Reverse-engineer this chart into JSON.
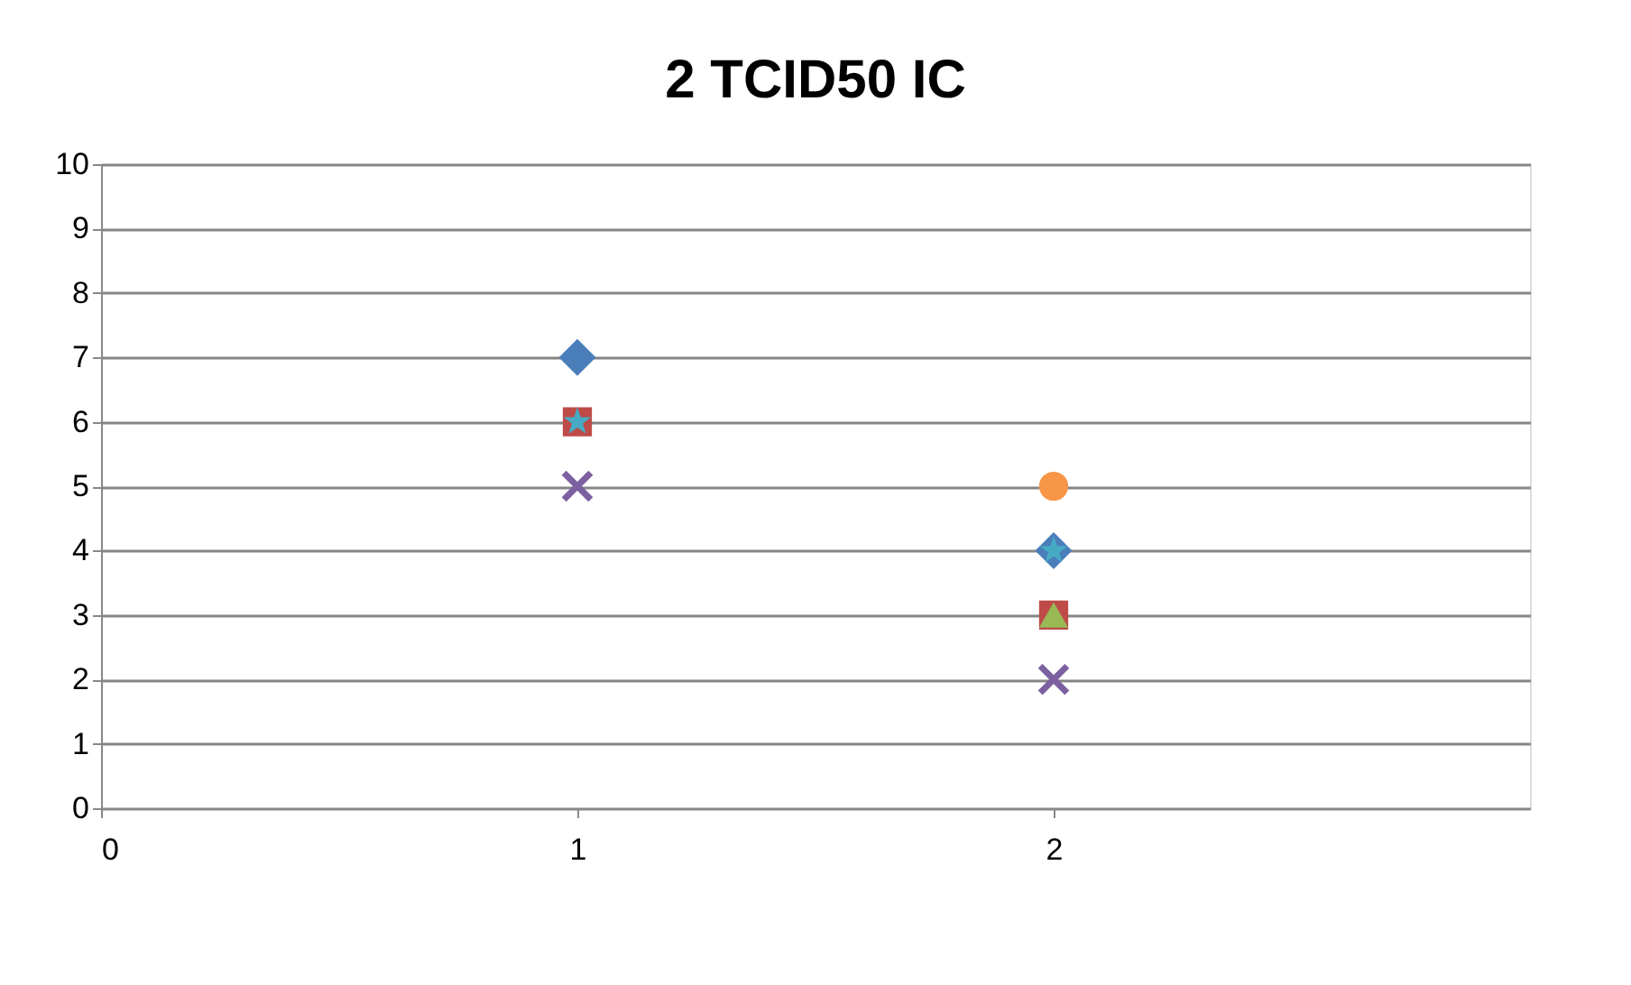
{
  "chart_data": {
    "type": "scatter",
    "title": "2 TCID50 IC",
    "x": [
      1,
      2
    ],
    "series": [
      {
        "color": "#4a7ebb",
        "marker": "diamond",
        "values": [
          7,
          4
        ]
      },
      {
        "color": "#be4b48",
        "marker": "square",
        "values": [
          6,
          3
        ]
      },
      {
        "color": "#98b954",
        "marker": "triangle",
        "values": [
          null,
          3
        ]
      },
      {
        "color": "#7d60a0",
        "marker": "cross",
        "values": [
          5,
          2
        ]
      },
      {
        "color": "#46aac5",
        "marker": "star",
        "values": [
          6,
          4
        ]
      },
      {
        "color": "#f79646",
        "marker": "circle",
        "values": [
          null,
          5
        ]
      }
    ],
    "xlim": [
      0,
      3
    ],
    "xticks": [
      0,
      1,
      2
    ],
    "ylim": [
      0,
      10
    ],
    "yticks": [
      0,
      1,
      2,
      3,
      4,
      5,
      6,
      7,
      8,
      9,
      10
    ],
    "grid": "y",
    "legend": false
  }
}
